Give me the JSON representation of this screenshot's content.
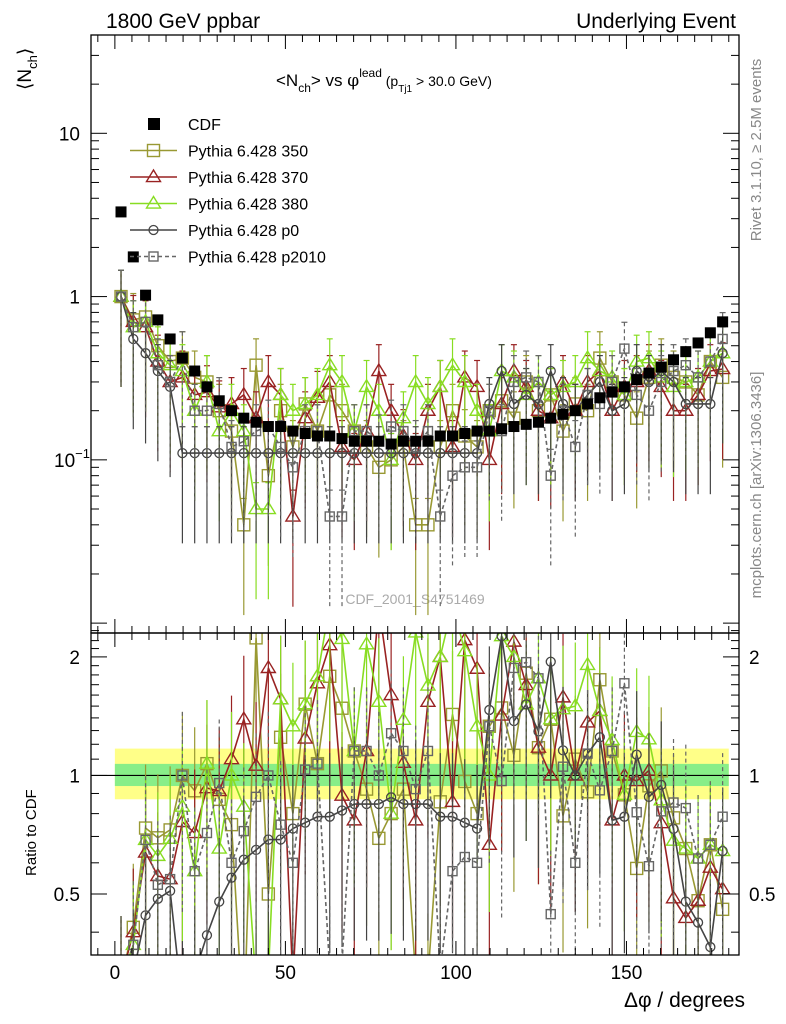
{
  "header": {
    "left": "1800 GeV ppbar",
    "right": "Underlying Event"
  },
  "side": {
    "rivet": "Rivet 3.1.10, ≥ 2.5M events",
    "mcplots": "mcplots.cern.ch [arXiv:1306.3436]"
  },
  "watermark": "CDF_2001_S4751469",
  "chart_data": {
    "type": "scatter",
    "title": "<N_ch> vs φ^lead (p_Tj1 > 30.0 GeV)",
    "xlabel": "Δφ / degrees",
    "ylabel_main": "⟨N_ch⟩",
    "ylabel_ratio": "Ratio to CDF",
    "xlim": [
      -7,
      183
    ],
    "main_ylim": [
      0.0087,
      40
    ],
    "main_yscale": "log",
    "ratio_ylim": [
      0.35,
      2.3
    ],
    "ratio_yscale": "log",
    "x_ticks": [
      0,
      50,
      100,
      150
    ],
    "main_y_ticks": [
      {
        "value": 10,
        "label": "10"
      },
      {
        "value": 1,
        "label": "1"
      },
      {
        "value": 0.1,
        "label": "10^-1"
      }
    ],
    "ratio_y_ticks": [
      {
        "value": 2,
        "label": "2"
      },
      {
        "value": 1,
        "label": "1"
      },
      {
        "value": 0.5,
        "label": "0.5"
      }
    ],
    "legend_position": "top-left",
    "x": [
      1.8,
      5.4,
      9.0,
      12.6,
      16.2,
      19.8,
      23.4,
      27.0,
      30.6,
      34.2,
      37.8,
      41.4,
      45.0,
      48.6,
      52.2,
      55.8,
      59.4,
      63.0,
      66.6,
      70.2,
      73.8,
      77.4,
      81.0,
      84.6,
      88.2,
      91.8,
      95.4,
      99.0,
      102.6,
      106.2,
      109.8,
      113.4,
      117.0,
      120.6,
      124.2,
      127.8,
      131.4,
      135.0,
      138.6,
      142.2,
      145.8,
      149.4,
      153.0,
      156.6,
      160.2,
      163.8,
      167.4,
      171.0,
      174.6,
      178.2
    ],
    "series": [
      {
        "name": "CDF",
        "color": "#000000",
        "marker": "filled-square",
        "values": [
          3.3,
          1.75,
          1.02,
          0.72,
          0.55,
          0.42,
          0.35,
          0.28,
          0.23,
          0.2,
          0.18,
          0.17,
          0.16,
          0.16,
          0.15,
          0.145,
          0.14,
          0.14,
          0.135,
          0.13,
          0.13,
          0.13,
          0.125,
          0.13,
          0.13,
          0.13,
          0.14,
          0.14,
          0.145,
          0.15,
          0.15,
          0.155,
          0.16,
          0.165,
          0.17,
          0.18,
          0.19,
          0.2,
          0.22,
          0.24,
          0.26,
          0.28,
          0.31,
          0.34,
          0.37,
          0.41,
          0.46,
          0.52,
          0.6,
          0.7
        ]
      },
      {
        "name": "Pythia 6.428 350",
        "color": "#999933",
        "marker": "open-square",
        "values": [
          1.0,
          0.72,
          0.75,
          0.5,
          0.4,
          0.42,
          0.32,
          0.3,
          0.2,
          0.15,
          0.04,
          0.38,
          0.08,
          0.2,
          0.12,
          0.22,
          0.15,
          0.25,
          0.2,
          0.15,
          0.12,
          0.09,
          0.1,
          0.12,
          0.04,
          0.04,
          0.12,
          0.2,
          0.14,
          0.12,
          0.2,
          0.23,
          0.18,
          0.3,
          0.2,
          0.25,
          0.15,
          0.22,
          0.2,
          0.42,
          0.3,
          0.25,
          0.18,
          0.32,
          0.38,
          0.32,
          0.3,
          0.25,
          0.4,
          0.32
        ]
      },
      {
        "name": "Pythia 6.428 370",
        "color": "#992222",
        "marker": "open-triangle",
        "values": [
          1.0,
          0.7,
          0.65,
          0.4,
          0.3,
          0.32,
          0.25,
          0.26,
          0.21,
          0.22,
          0.25,
          0.18,
          0.3,
          0.25,
          0.045,
          0.18,
          0.24,
          0.3,
          0.12,
          0.1,
          0.15,
          0.35,
          0.2,
          0.14,
          0.1,
          0.2,
          0.28,
          0.12,
          0.32,
          0.28,
          0.1,
          0.22,
          0.35,
          0.28,
          0.2,
          0.18,
          0.3,
          0.2,
          0.3,
          0.35,
          0.2,
          0.28,
          0.3,
          0.35,
          0.28,
          0.2,
          0.2,
          0.25,
          0.35,
          0.36
        ]
      },
      {
        "name": "Pythia 6.428 380",
        "color": "#88dd22",
        "marker": "open-triangle",
        "values": [
          1.0,
          0.65,
          0.7,
          0.45,
          0.38,
          0.35,
          0.2,
          0.3,
          0.15,
          0.2,
          0.15,
          0.05,
          0.05,
          0.25,
          0.2,
          0.22,
          0.25,
          0.38,
          0.3,
          0.15,
          0.28,
          0.2,
          0.1,
          0.18,
          0.3,
          0.22,
          0.28,
          0.38,
          0.3,
          0.2,
          0.15,
          0.35,
          0.32,
          0.25,
          0.3,
          0.25,
          0.28,
          0.3,
          0.42,
          0.35,
          0.32,
          0.25,
          0.4,
          0.42,
          0.32,
          0.28,
          0.3,
          0.32,
          0.4,
          0.45
        ]
      },
      {
        "name": "Pythia 6.428 p0",
        "color": "#444444",
        "marker": "open-circle",
        "values": [
          1.0,
          0.55,
          0.45,
          0.35,
          0.28,
          0.11,
          0.11,
          0.11,
          0.11,
          0.11,
          0.11,
          0.11,
          0.11,
          0.11,
          0.11,
          0.11,
          0.11,
          0.11,
          0.11,
          0.11,
          0.11,
          0.11,
          0.11,
          0.11,
          0.11,
          0.11,
          0.11,
          0.11,
          0.11,
          0.11,
          0.22,
          0.35,
          0.22,
          0.25,
          0.22,
          0.35,
          0.22,
          0.2,
          0.25,
          0.3,
          0.2,
          0.22,
          0.35,
          0.3,
          0.35,
          0.3,
          0.22,
          0.22,
          0.22,
          0.45
        ]
      },
      {
        "name": "Pythia 6.428 p2010",
        "color": "#666666",
        "marker": "open-square-dashed",
        "values": [
          1.0,
          0.65,
          0.7,
          0.38,
          0.3,
          0.42,
          0.2,
          0.2,
          0.22,
          0.12,
          0.13,
          0.15,
          0.16,
          0.12,
          0.09,
          0.15,
          0.15,
          0.045,
          0.045,
          0.15,
          0.15,
          0.13,
          0.16,
          0.15,
          0.12,
          0.15,
          0.045,
          0.08,
          0.09,
          0.09,
          0.2,
          0.15,
          0.3,
          0.32,
          0.3,
          0.08,
          0.2,
          0.12,
          0.25,
          0.22,
          0.3,
          0.48,
          0.25,
          0.2,
          0.3,
          0.35,
          0.38,
          0.32,
          0.4,
          0.55
        ]
      }
    ]
  }
}
